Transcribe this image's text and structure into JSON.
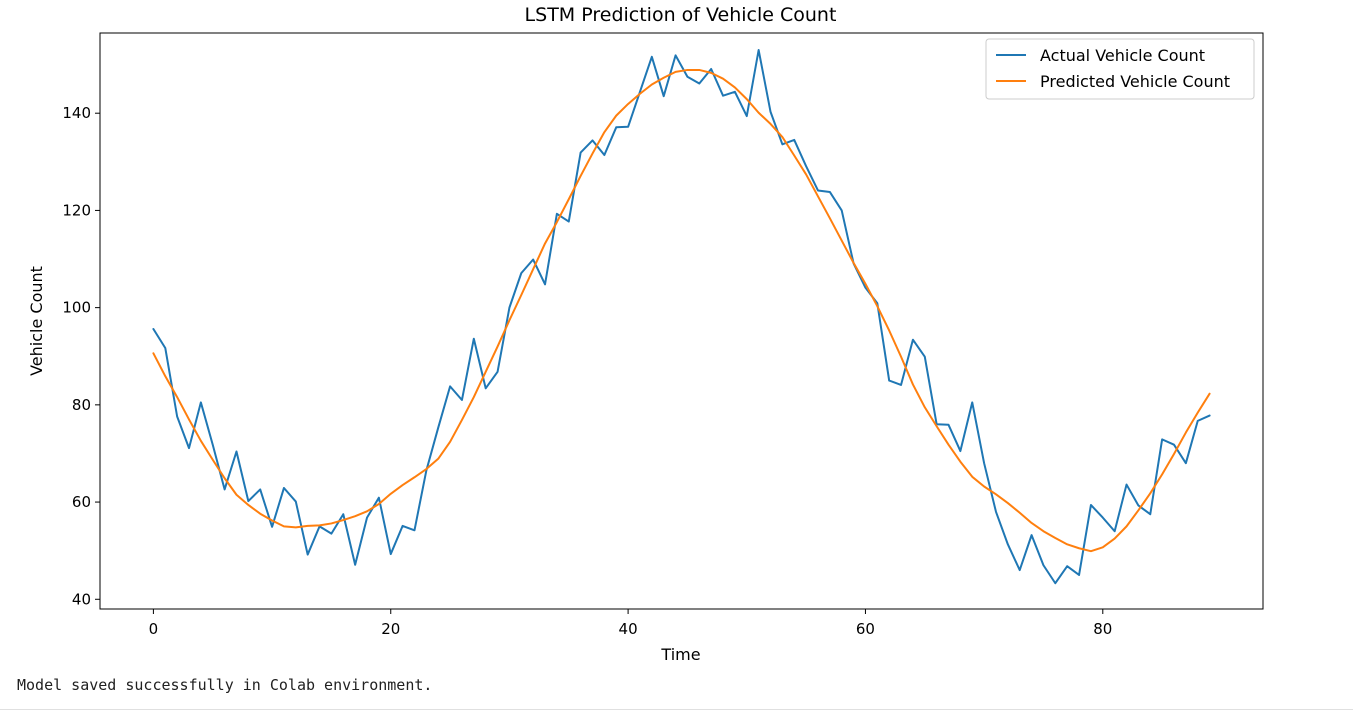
{
  "chart_data": {
    "type": "line",
    "title": "LSTM Prediction of Vehicle Count",
    "xlabel": "Time",
    "ylabel": "Vehicle Count",
    "xlim": [
      -4.5,
      93.5
    ],
    "ylim": [
      38,
      156.5
    ],
    "xticks": [
      0,
      20,
      40,
      60,
      80
    ],
    "yticks": [
      40,
      60,
      80,
      100,
      120,
      140
    ],
    "grid": false,
    "legend_position": "top-right",
    "series": [
      {
        "name": "Actual Vehicle Count",
        "color": "#1f77b4",
        "x": [
          0,
          1,
          2,
          3,
          4,
          5,
          6,
          7,
          8,
          9,
          10,
          11,
          12,
          13,
          14,
          15,
          16,
          17,
          18,
          19,
          20,
          21,
          22,
          23,
          24,
          25,
          26,
          27,
          28,
          29,
          30,
          31,
          32,
          33,
          34,
          35,
          36,
          37,
          38,
          39,
          40,
          41,
          42,
          43,
          44,
          45,
          46,
          47,
          48,
          49,
          50,
          51,
          52,
          53,
          54,
          55,
          56,
          57,
          58,
          59,
          60,
          61,
          62,
          63,
          64,
          65,
          66,
          67,
          68,
          69,
          70,
          71,
          72,
          73,
          74,
          75,
          76,
          77,
          78,
          79,
          80,
          81,
          82,
          83,
          84,
          85,
          86,
          87,
          88,
          89
        ],
        "values": [
          95.6,
          91.7,
          77.6,
          71.1,
          80.5,
          71.8,
          62.6,
          70.4,
          60.2,
          62.6,
          54.9,
          62.9,
          60.1,
          49.2,
          55.0,
          53.5,
          57.5,
          47.1,
          56.8,
          60.9,
          49.3,
          55.1,
          54.2,
          66.5,
          75.3,
          83.8,
          81.0,
          93.6,
          83.4,
          86.8,
          100.0,
          107.1,
          109.9,
          104.8,
          119.3,
          117.7,
          131.9,
          134.4,
          131.4,
          137.1,
          137.2,
          144.4,
          151.6,
          143.5,
          151.9,
          147.5,
          146.1,
          149.1,
          143.6,
          144.4,
          139.4,
          153.0,
          140.3,
          133.6,
          134.5,
          129.1,
          124.1,
          123.8,
          120.0,
          109.1,
          104.1,
          100.9,
          85.0,
          84.1,
          93.4,
          89.9,
          76.0,
          75.9,
          70.5,
          80.5,
          68.0,
          58.0,
          51.3,
          46.0,
          53.2,
          47.0,
          43.3,
          46.8,
          45.0,
          59.4,
          56.8,
          54.0,
          63.6,
          59.3,
          57.5,
          72.9,
          71.8,
          68.0,
          76.7,
          77.8
        ]
      },
      {
        "name": "Predicted Vehicle Count",
        "color": "#ff7f0e",
        "x": [
          0,
          1,
          2,
          3,
          4,
          5,
          6,
          7,
          8,
          9,
          10,
          11,
          12,
          13,
          14,
          15,
          16,
          17,
          18,
          19,
          20,
          21,
          22,
          23,
          24,
          25,
          26,
          27,
          28,
          29,
          30,
          31,
          32,
          33,
          34,
          35,
          36,
          37,
          38,
          39,
          40,
          41,
          42,
          43,
          44,
          45,
          46,
          47,
          48,
          49,
          50,
          51,
          52,
          53,
          54,
          55,
          56,
          57,
          58,
          59,
          60,
          61,
          62,
          63,
          64,
          65,
          66,
          67,
          68,
          69,
          70,
          71,
          72,
          73,
          74,
          75,
          76,
          77,
          78,
          79,
          80,
          81,
          82,
          83,
          84,
          85,
          86,
          87,
          88,
          89
        ],
        "values": [
          90.6,
          85.9,
          81.6,
          77.0,
          72.6,
          68.7,
          64.9,
          61.5,
          59.4,
          57.6,
          56.2,
          55.0,
          54.8,
          55.1,
          55.2,
          55.6,
          56.3,
          57.1,
          58.1,
          59.6,
          61.7,
          63.5,
          65.1,
          66.8,
          68.9,
          72.4,
          76.9,
          81.6,
          86.8,
          92.0,
          97.4,
          102.6,
          107.9,
          113.2,
          117.6,
          122.3,
          127.1,
          131.7,
          136.1,
          139.5,
          141.9,
          144.0,
          145.9,
          147.3,
          148.5,
          148.9,
          148.9,
          148.3,
          147.1,
          145.3,
          142.9,
          140.1,
          137.8,
          135.1,
          131.3,
          127.4,
          122.9,
          118.4,
          113.8,
          109.2,
          104.9,
          100.3,
          95.3,
          89.9,
          84.2,
          79.5,
          75.6,
          71.8,
          68.3,
          65.2,
          63.2,
          61.6,
          59.8,
          57.8,
          55.7,
          54.0,
          52.6,
          51.3,
          50.5,
          49.9,
          50.7,
          52.5,
          55.0,
          58.3,
          61.8,
          65.7,
          69.9,
          74.3,
          78.4,
          82.3
        ]
      }
    ]
  },
  "output_text": "Model saved successfully in Colab environment."
}
